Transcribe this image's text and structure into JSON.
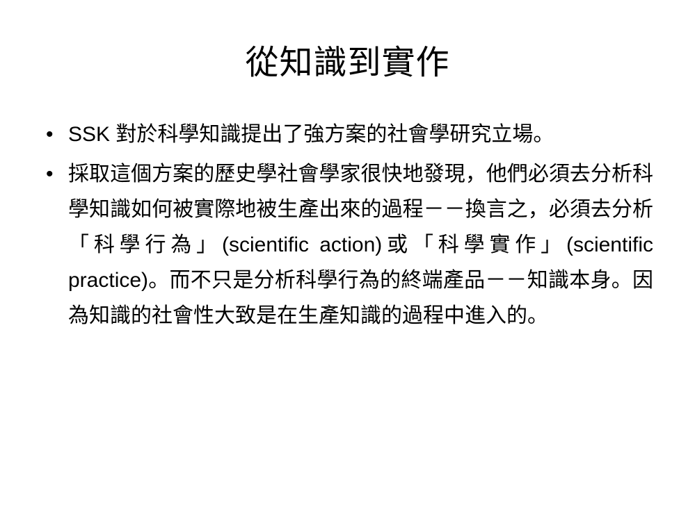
{
  "title": "從知識到實作",
  "bullets": [
    "SSK 對於科學知識提出了強方案的社會學研究立場。",
    "採取這個方案的歷史學社會學家很快地發現，他們必須去分析科學知識如何被實際地被生產出來的過程－－換言之，必須去分析「科學行為」(scientific action)或「科學實作」(scientific practice)。而不只是分析科學行為的終端產品－－知識本身。因為知識的社會性大致是在生產知識的過程中進入的。"
  ],
  "style": {
    "background_color": "#ffffff",
    "text_color": "#000000",
    "title_fontsize": 48,
    "body_fontsize": 30,
    "line_height": 1.7
  }
}
